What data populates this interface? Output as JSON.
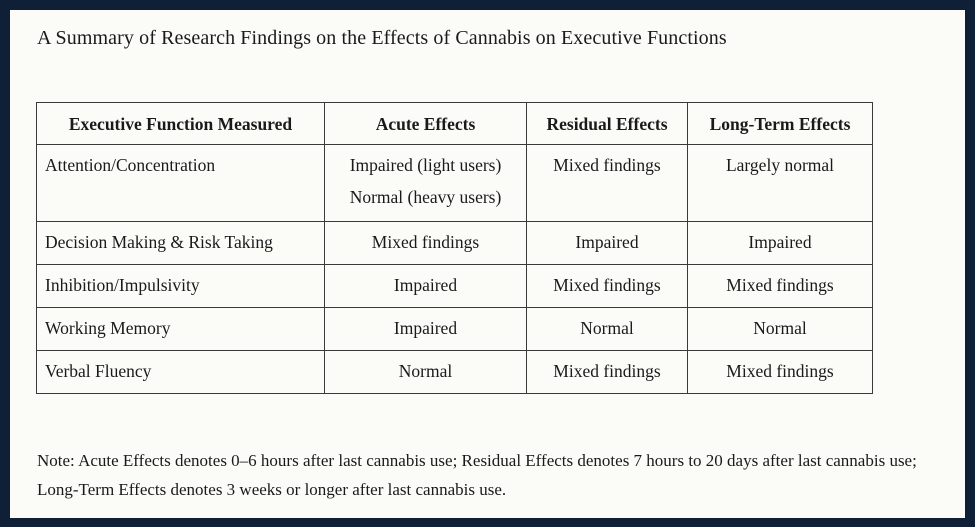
{
  "title": "A Summary of Research Findings on the Effects of Cannabis on Executive Functions",
  "table": {
    "headers": [
      "Executive Function Measured",
      "Acute Effects",
      "Residual Effects",
      "Long-Term Effects"
    ],
    "rows": [
      {
        "function": "Attention/Concentration",
        "acute_line1": "Impaired (light users)",
        "acute_line2": "Normal (heavy users)",
        "residual": "Mixed findings",
        "long_term": "Largely normal"
      },
      {
        "function": "Decision Making & Risk Taking",
        "acute": "Mixed findings",
        "residual": "Impaired",
        "long_term": "Impaired"
      },
      {
        "function": "Inhibition/Impulsivity",
        "acute": "Impaired",
        "residual": "Mixed findings",
        "long_term": "Mixed findings"
      },
      {
        "function": "Working Memory",
        "acute": "Impaired",
        "residual": "Normal",
        "long_term": "Normal"
      },
      {
        "function": "Verbal Fluency",
        "acute": "Normal",
        "residual": "Mixed findings",
        "long_term": "Mixed findings"
      }
    ]
  },
  "note": "Note: Acute Effects denotes 0–6 hours after last cannabis use; Residual Effects denotes 7 hours to 20 days after last cannabis use; Long-Term Effects denotes 3 weeks or longer after last cannabis use.",
  "colors": {
    "frame_border": "#0f2036",
    "background": "#fbfbf8",
    "text": "#1a1a1a",
    "table_border": "#3a3a3a"
  }
}
